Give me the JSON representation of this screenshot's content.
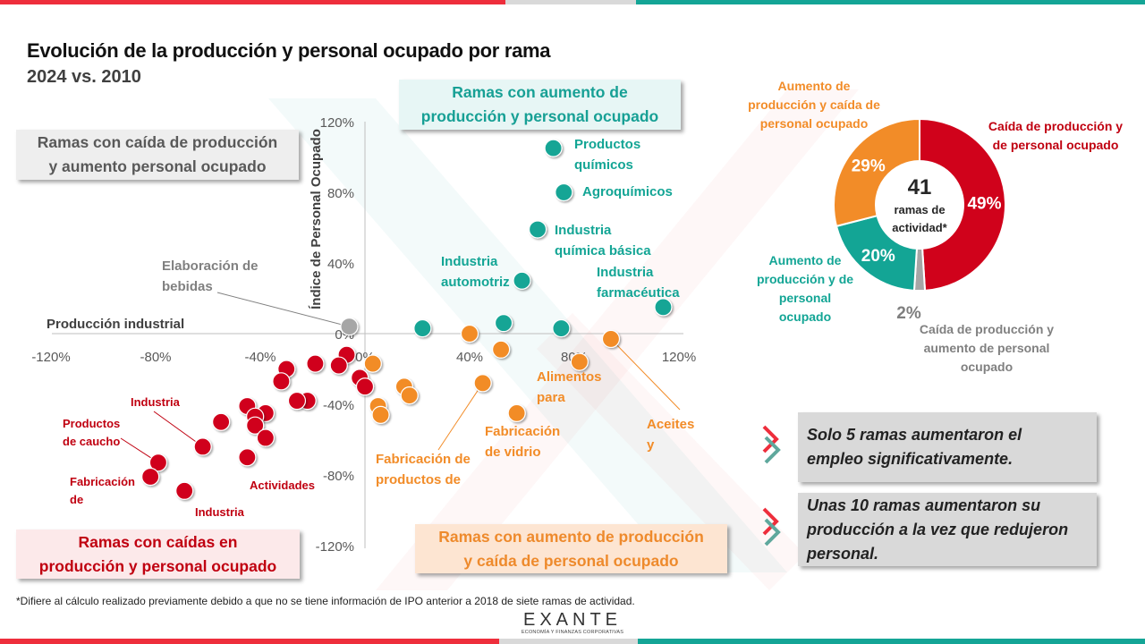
{
  "header": {
    "title": "Evolución de la producción y personal ocupado por rama",
    "subtitle": "2024 vs. 2010"
  },
  "colors": {
    "red": "#d0021b",
    "teal": "#13a595",
    "orange": "#f28c28",
    "grey": "#a6a6a6",
    "bar_red": "#ee2e3c",
    "bar_grey": "#d9d9d9",
    "bar_teal": "#14a596"
  },
  "quadrants": {
    "top_right": [
      "Ramas con aumento de",
      "producción y personal ocupado"
    ],
    "top_left": [
      "Ramas con caída de producción",
      "y aumento personal ocupado"
    ],
    "bottom_left": [
      "Ramas con caídas en",
      "producción y personal ocupado"
    ],
    "bottom_right": [
      "Ramas con aumento de producción",
      "y caída de personal ocupado"
    ]
  },
  "chart_data": [
    {
      "type": "scatter",
      "title": "Evolución de la producción y personal ocupado por rama",
      "xlabel": "Producción industrial",
      "ylabel": "Índice de Personal Ocupado",
      "xlim": [
        -120,
        120
      ],
      "ylim": [
        -120,
        120
      ],
      "x_ticks": [
        "-120%",
        "-80%",
        "-40%",
        "0%",
        "40%",
        "80%",
        "120%"
      ],
      "x_tick_values": [
        -120,
        -80,
        -40,
        0,
        40,
        80,
        120
      ],
      "y_ticks": [
        "120%",
        "80%",
        "40%",
        "0%",
        "-40%",
        "-80%",
        "-120%"
      ],
      "y_tick_values": [
        120,
        80,
        40,
        0,
        -40,
        -80,
        -120
      ],
      "grid": false,
      "series": [
        {
          "name": "Aumento de producción y de personal ocupado",
          "color": "teal",
          "points": [
            {
              "x": 72,
              "y": 105,
              "label": "Productos químicos"
            },
            {
              "x": 76,
              "y": 80,
              "label": "Agroquímicos"
            },
            {
              "x": 66,
              "y": 59,
              "label": "Industria química básica"
            },
            {
              "x": 60,
              "y": 30,
              "label": "Industria automotriz"
            },
            {
              "x": 114,
              "y": 15,
              "label": "Industria farmacéutica"
            },
            {
              "x": 22,
              "y": 3
            },
            {
              "x": 53,
              "y": 6
            },
            {
              "x": 75,
              "y": 3
            }
          ]
        },
        {
          "name": "Caída de producción y aumento de personal ocupado",
          "color": "grey",
          "points": [
            {
              "x": -6,
              "y": 4,
              "label": "Elaboración de bebidas"
            }
          ]
        },
        {
          "name": "Aumento de producción y caída de personal ocupado",
          "color": "orange",
          "points": [
            {
              "x": 40,
              "y": 0
            },
            {
              "x": 52,
              "y": -9
            },
            {
              "x": 94,
              "y": -3,
              "label": "Aceites y"
            },
            {
              "x": 82,
              "y": -16,
              "label": "Alimentos para"
            },
            {
              "x": 3,
              "y": -17
            },
            {
              "x": 15,
              "y": -30
            },
            {
              "x": 17,
              "y": -35
            },
            {
              "x": 5,
              "y": -41
            },
            {
              "x": 6,
              "y": -46
            },
            {
              "x": 45,
              "y": -28,
              "label": "Fabricación de productos de"
            },
            {
              "x": 58,
              "y": -45,
              "label": "Fabricación de vidrio"
            }
          ]
        },
        {
          "name": "Caída de producción y de personal ocupado",
          "color": "red",
          "points": [
            {
              "x": -7,
              "y": -12
            },
            {
              "x": -10,
              "y": -18
            },
            {
              "x": -19,
              "y": -17
            },
            {
              "x": -30,
              "y": -20
            },
            {
              "x": -32,
              "y": -27
            },
            {
              "x": -2,
              "y": -25
            },
            {
              "x": 0,
              "y": -30
            },
            {
              "x": -22,
              "y": -38
            },
            {
              "x": -26,
              "y": -38
            },
            {
              "x": -45,
              "y": -41
            },
            {
              "x": -38,
              "y": -45
            },
            {
              "x": -42,
              "y": -47
            },
            {
              "x": -42,
              "y": -52
            },
            {
              "x": -38,
              "y": -59
            },
            {
              "x": -55,
              "y": -50
            },
            {
              "x": -62,
              "y": -64,
              "label": "Industria"
            },
            {
              "x": -45,
              "y": -70,
              "label": "Actividades"
            },
            {
              "x": -79,
              "y": -73,
              "label": "Productos de caucho"
            },
            {
              "x": -82,
              "y": -81,
              "label": "Fabricación de"
            },
            {
              "x": -69,
              "y": -89,
              "label": "Industria"
            }
          ]
        }
      ]
    },
    {
      "type": "pie",
      "variant": "donut",
      "center_value": "41",
      "center_label": [
        "ramas de",
        "actividad*"
      ],
      "slices": [
        {
          "label": "Caída de producción y de personal ocupado",
          "value": 49,
          "display": "49%",
          "color": "red"
        },
        {
          "label": "Caída de producción y aumento de personal ocupado",
          "value": 2,
          "display": "2%",
          "color": "grey"
        },
        {
          "label": "Aumento de producción y de personal ocupado",
          "value": 20,
          "display": "20%",
          "color": "teal"
        },
        {
          "label": "Aumento de producción y caída de personal ocupado",
          "value": 29,
          "display": "29%",
          "color": "orange"
        }
      ],
      "legend_labels": {
        "red": [
          "Caída de producción y",
          "de personal ocupado"
        ],
        "grey": [
          "Caída de producción y",
          "aumento de personal",
          "ocupado"
        ],
        "teal": [
          "Aumento de",
          "producción y de",
          "personal",
          "ocupado"
        ],
        "orange": [
          "Aumento de",
          "producción y caída de",
          "personal ocupado"
        ]
      }
    }
  ],
  "messages": [
    [
      "Solo 5 ramas aumentaron el",
      "empleo significativamente."
    ],
    [
      "Unas 10 ramas aumentaron su",
      "producción a la vez que redujeron",
      "personal."
    ]
  ],
  "footnote": "*Difiere al cálculo realizado previamente debido a que no se tiene información de IPO anterior a 2018 de siete ramas de actividad.",
  "logo": {
    "word": "EXANTE",
    "tagline": "ECONOMÍA Y FINANZAS CORPORATIVAS"
  }
}
